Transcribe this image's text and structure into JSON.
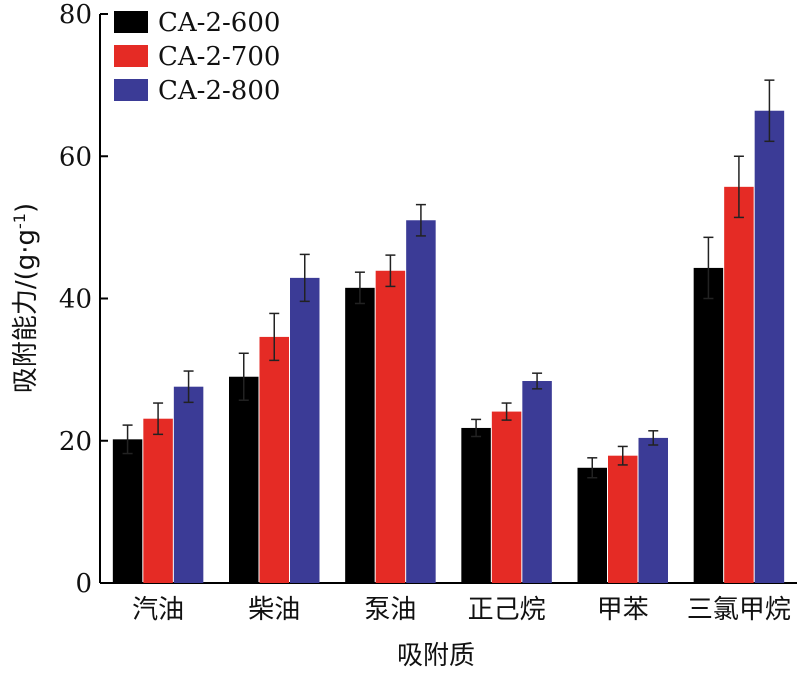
{
  "chart_data": {
    "type": "bar",
    "categories": [
      "汽油",
      "柴油",
      "泵油",
      "正己烷",
      "甲苯",
      "三氯甲烷"
    ],
    "series": [
      {
        "name": "CA-2-600",
        "color": "#000000",
        "values": [
          20.2,
          29.0,
          41.5,
          21.8,
          16.2,
          44.3
        ],
        "errors": [
          2.0,
          3.3,
          2.2,
          1.2,
          1.4,
          4.3
        ]
      },
      {
        "name": "CA-2-700",
        "color": "#e52b25",
        "values": [
          23.1,
          34.6,
          43.9,
          24.1,
          17.9,
          55.7
        ],
        "errors": [
          2.2,
          3.3,
          2.2,
          1.2,
          1.3,
          4.3
        ]
      },
      {
        "name": "CA-2-800",
        "color": "#3b3b96",
        "values": [
          27.6,
          42.9,
          51.0,
          28.4,
          20.4,
          66.4
        ],
        "errors": [
          2.2,
          3.3,
          2.2,
          1.1,
          1.0,
          4.3
        ]
      }
    ],
    "xlabel": "吸附质",
    "ylabel_main": "吸附能力/(g·g",
    "ylabel_sup": "-1",
    "ylabel_close": ")",
    "ylim": [
      0,
      80
    ],
    "yticks": [
      "0",
      "20",
      "40",
      "60",
      "80"
    ],
    "legend_position": "top-left",
    "grid": false
  }
}
